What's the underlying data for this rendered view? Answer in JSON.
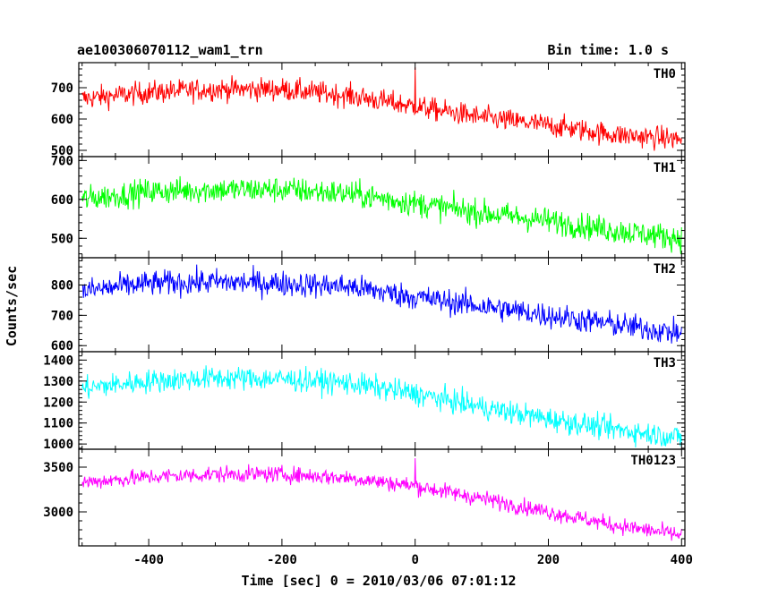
{
  "title_left": "ae100306070112_wam1_trn",
  "title_right": "Bin time: 1.0 s",
  "ylabel": "Counts/sec",
  "xlabel": "Time [sec] 0 = 2010/03/06 07:01:12",
  "chart_data": {
    "type": "line",
    "xlim": [
      -505,
      405
    ],
    "x_ticks": [
      -400,
      -200,
      0,
      200,
      400
    ],
    "bin_time_s": 1.0,
    "panels": [
      {
        "name": "TH0",
        "color": "#ff0000",
        "ylim": [
          480,
          780
        ],
        "y_ticks": [
          500,
          600,
          700
        ],
        "trend": [
          [
            -500,
            665
          ],
          [
            -400,
            685
          ],
          [
            -300,
            695
          ],
          [
            -200,
            695
          ],
          [
            -100,
            675
          ],
          [
            0,
            640
          ],
          [
            100,
            605
          ],
          [
            200,
            580
          ],
          [
            300,
            550
          ],
          [
            400,
            535
          ]
        ],
        "noise": 26,
        "spike": {
          "x": 0,
          "y": 765
        }
      },
      {
        "name": "TH1",
        "color": "#00ff00",
        "ylim": [
          450,
          710
        ],
        "y_ticks": [
          500,
          600,
          700
        ],
        "trend": [
          [
            -500,
            600
          ],
          [
            -400,
            620
          ],
          [
            -300,
            625
          ],
          [
            -200,
            625
          ],
          [
            -100,
            615
          ],
          [
            0,
            590
          ],
          [
            100,
            565
          ],
          [
            200,
            545
          ],
          [
            300,
            520
          ],
          [
            400,
            500
          ]
        ],
        "noise": 24
      },
      {
        "name": "TH2",
        "color": "#0000ff",
        "ylim": [
          580,
          890
        ],
        "y_ticks": [
          600,
          700,
          800
        ],
        "trend": [
          [
            -500,
            780
          ],
          [
            -400,
            805
          ],
          [
            -300,
            810
          ],
          [
            -200,
            805
          ],
          [
            -100,
            795
          ],
          [
            0,
            760
          ],
          [
            100,
            730
          ],
          [
            200,
            700
          ],
          [
            300,
            670
          ],
          [
            400,
            640
          ]
        ],
        "noise": 30
      },
      {
        "name": "TH3",
        "color": "#00ffff",
        "ylim": [
          975,
          1440
        ],
        "y_ticks": [
          1000,
          1100,
          1200,
          1300,
          1400
        ],
        "trend": [
          [
            -500,
            1265
          ],
          [
            -400,
            1300
          ],
          [
            -300,
            1315
          ],
          [
            -200,
            1310
          ],
          [
            -100,
            1290
          ],
          [
            0,
            1240
          ],
          [
            100,
            1175
          ],
          [
            200,
            1120
          ],
          [
            300,
            1070
          ],
          [
            400,
            1030
          ]
        ],
        "noise": 40
      },
      {
        "name": "TH0123",
        "color": "#ff00ff",
        "ylim": [
          2620,
          3700
        ],
        "y_ticks": [
          3000,
          3500
        ],
        "trend": [
          [
            -500,
            3330
          ],
          [
            -400,
            3390
          ],
          [
            -300,
            3420
          ],
          [
            -200,
            3420
          ],
          [
            -100,
            3380
          ],
          [
            0,
            3290
          ],
          [
            100,
            3150
          ],
          [
            200,
            3000
          ],
          [
            300,
            2850
          ],
          [
            400,
            2740
          ]
        ],
        "noise": 65,
        "spike": {
          "x": 0,
          "y": 3600
        }
      }
    ]
  }
}
